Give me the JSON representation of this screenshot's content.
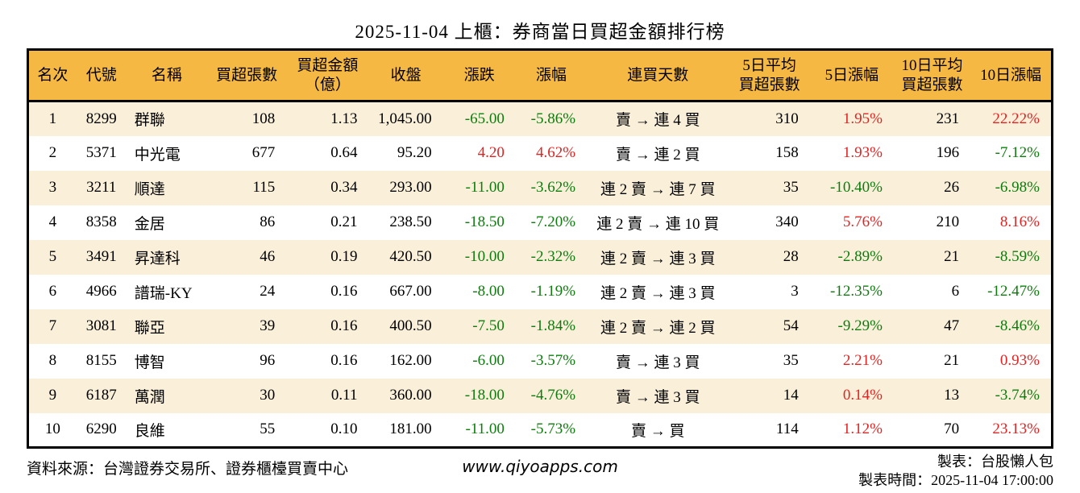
{
  "title": "2025-11-04 上櫃：券商當日買超金額排行榜",
  "colors": {
    "header_bg": "#F5B843",
    "row_alt_bg": "#FAF0DA",
    "row_bg": "#FFFFFF",
    "up_red": "#E02424",
    "down_green": "#0E7C0E",
    "border": "#000000",
    "text": "#000000"
  },
  "chart_data": {
    "type": "table",
    "title": "2025-11-04 上櫃：券商當日買超金額排行榜",
    "columns": [
      {
        "key": "rank",
        "label": "名次"
      },
      {
        "key": "code",
        "label": "代號"
      },
      {
        "key": "name",
        "label": "名稱"
      },
      {
        "key": "buy_vol",
        "label": "買超張數"
      },
      {
        "key": "buy_amt",
        "label": "買超金額",
        "label2": "（億）"
      },
      {
        "key": "close",
        "label": "收盤"
      },
      {
        "key": "change",
        "label": "漲跌"
      },
      {
        "key": "change_pct",
        "label": "漲幅"
      },
      {
        "key": "streak",
        "label": "連買天數"
      },
      {
        "key": "avg5",
        "label": "5日平均",
        "label2": "買超張數"
      },
      {
        "key": "pct5",
        "label": "5日漲幅"
      },
      {
        "key": "avg10",
        "label": "10日平均",
        "label2": "買超張數"
      },
      {
        "key": "pct10",
        "label": "10日漲幅"
      }
    ],
    "rows": [
      [
        "1",
        "8299",
        "群聯",
        "108",
        "1.13",
        "1,045.00",
        "-65.00",
        "-5.86%",
        "賣 → 連 4 買",
        "310",
        "1.95%",
        "231",
        "22.22%"
      ],
      [
        "2",
        "5371",
        "中光電",
        "677",
        "0.64",
        "95.20",
        "4.20",
        "4.62%",
        "賣 → 連 2 買",
        "158",
        "1.93%",
        "196",
        "-7.12%"
      ],
      [
        "3",
        "3211",
        "順達",
        "115",
        "0.34",
        "293.00",
        "-11.00",
        "-3.62%",
        "連 2 賣 → 連 7 買",
        "35",
        "-10.40%",
        "26",
        "-6.98%"
      ],
      [
        "4",
        "8358",
        "金居",
        "86",
        "0.21",
        "238.50",
        "-18.50",
        "-7.20%",
        "連 2 賣 → 連 10 買",
        "340",
        "5.76%",
        "210",
        "8.16%"
      ],
      [
        "5",
        "3491",
        "昇達科",
        "46",
        "0.19",
        "420.50",
        "-10.00",
        "-2.32%",
        "連 2 賣 → 連 3 買",
        "28",
        "-2.89%",
        "21",
        "-8.59%"
      ],
      [
        "6",
        "4966",
        "譜瑞-KY",
        "24",
        "0.16",
        "667.00",
        "-8.00",
        "-1.19%",
        "連 2 賣 → 連 3 買",
        "3",
        "-12.35%",
        "6",
        "-12.47%"
      ],
      [
        "7",
        "3081",
        "聯亞",
        "39",
        "0.16",
        "400.50",
        "-7.50",
        "-1.84%",
        "連 2 賣 → 連 2 買",
        "54",
        "-9.29%",
        "47",
        "-8.46%"
      ],
      [
        "8",
        "8155",
        "博智",
        "96",
        "0.16",
        "162.00",
        "-6.00",
        "-3.57%",
        "賣 → 連 3 買",
        "35",
        "2.21%",
        "21",
        "0.93%"
      ],
      [
        "9",
        "6187",
        "萬潤",
        "30",
        "0.11",
        "360.00",
        "-18.00",
        "-4.76%",
        "賣 → 連 3 買",
        "14",
        "0.14%",
        "13",
        "-3.74%"
      ],
      [
        "10",
        "6290",
        "良維",
        "55",
        "0.10",
        "181.00",
        "-11.00",
        "-5.73%",
        "賣 → 買",
        "114",
        "1.12%",
        "70",
        "23.13%"
      ]
    ]
  },
  "footer": {
    "source": "資料來源：台灣證券交易所、證券櫃檯買賣中心",
    "website": "www.qiyoapps.com",
    "maker": "製表：台股懶人包",
    "time": "製表時間：2025-11-04 17:00:00"
  }
}
